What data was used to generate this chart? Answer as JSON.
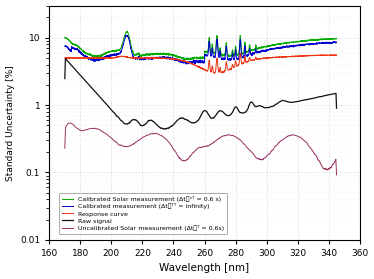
{
  "title": "",
  "xlabel": "Wavelength [nm]",
  "ylabel": "Standard Uncertainty [%]",
  "xlim": [
    160,
    360
  ],
  "ylim": [
    0.01,
    30
  ],
  "xticks": [
    160,
    180,
    200,
    220,
    240,
    260,
    280,
    300,
    320,
    340,
    360
  ],
  "legend_entries": [
    "Response curve",
    "Raw signal",
    "Calibrated Solar measurement (Δtᴯᵉᵀ = 0.6 s)",
    "Calibrated measurement (Δtᴯᵀᵀ = infinity)",
    "Uncalibrated Solar measurement (Δtᴯᵀ = 0.6s)"
  ],
  "colors": {
    "response": "#EE3311",
    "raw": "#111111",
    "cal_solar": "#00AA00",
    "cal_inf": "#0000CC",
    "uncal": "#993366"
  },
  "background_color": "#ffffff"
}
